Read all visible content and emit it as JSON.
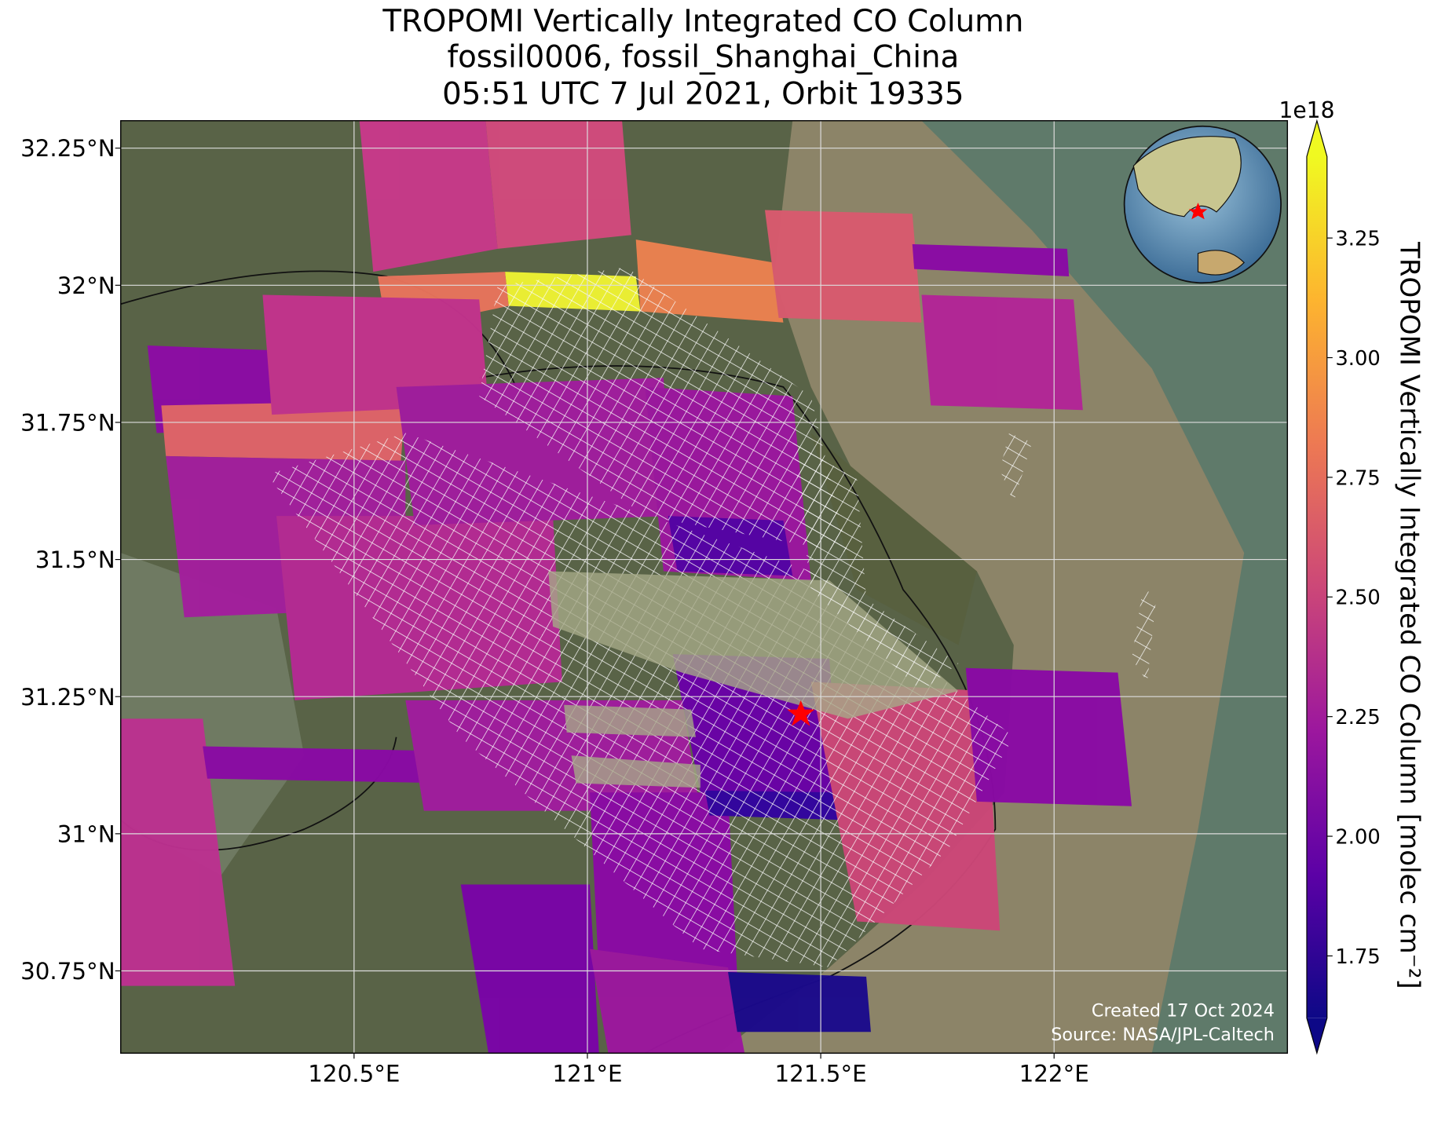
{
  "chart_data": {
    "type": "map",
    "title": [
      "TROPOMI Vertically Integrated CO Column",
      "fossil0006, fossil_Shanghai_China",
      "05:51 UTC 7 Jul 2021, Orbit 19335"
    ],
    "xlim": [
      120.0,
      122.5
    ],
    "ylim": [
      30.6,
      32.3
    ],
    "xticks": [
      {
        "value": 120.5,
        "label": "120.5°E"
      },
      {
        "value": 121,
        "label": "121°E"
      },
      {
        "value": 121.5,
        "label": "121.5°E"
      },
      {
        "value": 122,
        "label": "122°E"
      }
    ],
    "yticks": [
      {
        "value": 32.25,
        "label": "32.25°N"
      },
      {
        "value": 32,
        "label": "32°N"
      },
      {
        "value": 31.75,
        "label": "31.75°N"
      },
      {
        "value": 31.5,
        "label": "31.5°N"
      },
      {
        "value": 31.25,
        "label": "31.25°N"
      },
      {
        "value": 31,
        "label": "31°N"
      },
      {
        "value": 30.75,
        "label": "30.75°N"
      }
    ],
    "grid": true,
    "colorbar": {
      "label": "TROPOMI Vertically Integrated CO Column [molec cm⁻²]",
      "offset": "1e18",
      "lim": [
        1.62,
        3.42
      ],
      "ticks": [
        {
          "value": 1.75,
          "label": "1.75"
        },
        {
          "value": 2,
          "label": "2.00"
        },
        {
          "value": 2.25,
          "label": "2.25"
        },
        {
          "value": 2.5,
          "label": "2.50"
        },
        {
          "value": 2.75,
          "label": "2.75"
        },
        {
          "value": 3,
          "label": "3.00"
        },
        {
          "value": 3.25,
          "label": "3.25"
        }
      ],
      "colors": [
        "#0d0887",
        "#5c01a6",
        "#9c179e",
        "#cc4778",
        "#ed7953",
        "#fdb42f",
        "#f0f921"
      ]
    },
    "footer": [
      "Created 17 Oct 2024",
      "Source: NASA/JPL-Caltech"
    ]
  }
}
